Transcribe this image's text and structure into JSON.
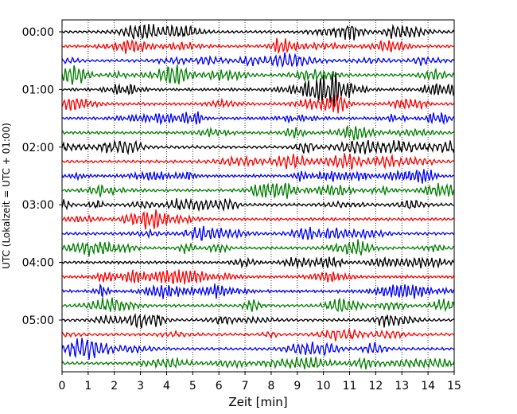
{
  "chart_data": {
    "type": "line",
    "description_kind": "helicorder",
    "xlabel": "Zeit  [min]",
    "ylabel": "UTC (Lokalzeit = UTC + 01:00)",
    "xlim": [
      0,
      15
    ],
    "x_ticks": [
      "0",
      "1",
      "2",
      "3",
      "4",
      "5",
      "6",
      "7",
      "8",
      "9",
      "10",
      "11",
      "12",
      "13",
      "14",
      "15"
    ],
    "y_tick_labels": [
      "00:00",
      "01:00",
      "02:00",
      "03:00",
      "04:00",
      "05:00"
    ],
    "rows_per_hour": 4,
    "row_count": 24,
    "trace_colors": [
      "#000000",
      "#ff0000",
      "#0000ff",
      "#007f00"
    ],
    "grid": "vertical dotted lines at each minute",
    "legend": "none"
  }
}
